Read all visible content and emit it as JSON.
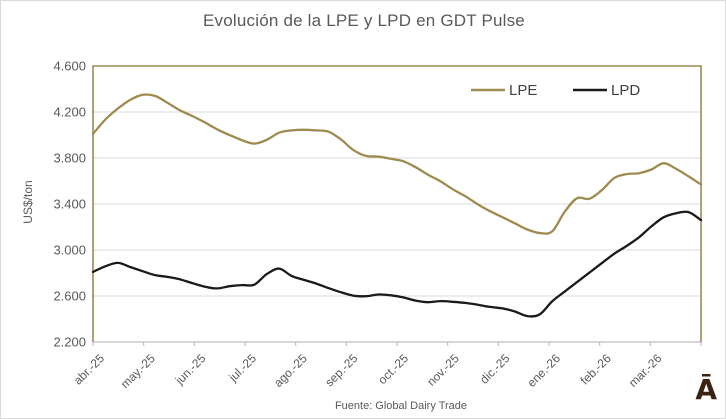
{
  "title": "Evolución de la LPE y LPD en GDT Pulse",
  "footer": {
    "source": "Fuente: Global Dairy Trade"
  },
  "logo": {
    "glyph": "Ā",
    "color": "#3a2315"
  },
  "y_axis": {
    "title": "US$/ton",
    "tick_labels": [
      "4.600",
      "4.200",
      "3.800",
      "3.400",
      "3.000",
      "2.600",
      "2.200"
    ]
  },
  "legend": {
    "entries": [
      "LPE",
      "LPD"
    ],
    "position": "top-right-inside"
  },
  "colors": {
    "plot_border": "#9d8b4f",
    "gridline": "#d9d9d9",
    "axis_line": "#bfbfbf",
    "tick_text": "#595959",
    "legend_text": "#404040",
    "title_text": "#595959"
  },
  "chart_data": {
    "type": "line",
    "title": "Evolución de la LPE y LPD en GDT Pulse",
    "xlabel": "",
    "ylabel": "US$/ton",
    "ylim": [
      2200,
      4600
    ],
    "ytick_step": 400,
    "grid": true,
    "smooth_lines": true,
    "legend_position": "top-right-inside",
    "x_tick_labels": [
      "abr.-25",
      "may.-25",
      "jun.-25",
      "jul.-25",
      "ago.-25",
      "sep.-25",
      "oct.-25",
      "nov.-25",
      "dic.-25",
      "ene.-26",
      "feb.-26",
      "mar.-26"
    ],
    "series": [
      {
        "name": "LPE",
        "color": "#9d8b4f",
        "values": [
          4010,
          4135,
          4230,
          4305,
          4350,
          4340,
          4280,
          4215,
          4165,
          4110,
          4050,
          4000,
          3955,
          3925,
          3958,
          4020,
          4040,
          4045,
          4040,
          4028,
          3960,
          3868,
          3818,
          3812,
          3793,
          3772,
          3720,
          3655,
          3598,
          3528,
          3468,
          3398,
          3337,
          3285,
          3232,
          3178,
          3148,
          3162,
          3330,
          3450,
          3445,
          3520,
          3625,
          3660,
          3668,
          3700,
          3755,
          3705,
          3640,
          3570
        ]
      },
      {
        "name": "LPD",
        "color": "#1a1a1a",
        "values": [
          2810,
          2858,
          2888,
          2852,
          2816,
          2782,
          2766,
          2745,
          2712,
          2682,
          2666,
          2685,
          2695,
          2698,
          2790,
          2838,
          2775,
          2740,
          2708,
          2668,
          2632,
          2603,
          2598,
          2613,
          2606,
          2588,
          2560,
          2546,
          2556,
          2550,
          2540,
          2524,
          2505,
          2492,
          2465,
          2425,
          2440,
          2553,
          2637,
          2720,
          2803,
          2885,
          2967,
          3035,
          3110,
          3205,
          3285,
          3320,
          3330,
          3260
        ]
      }
    ]
  }
}
